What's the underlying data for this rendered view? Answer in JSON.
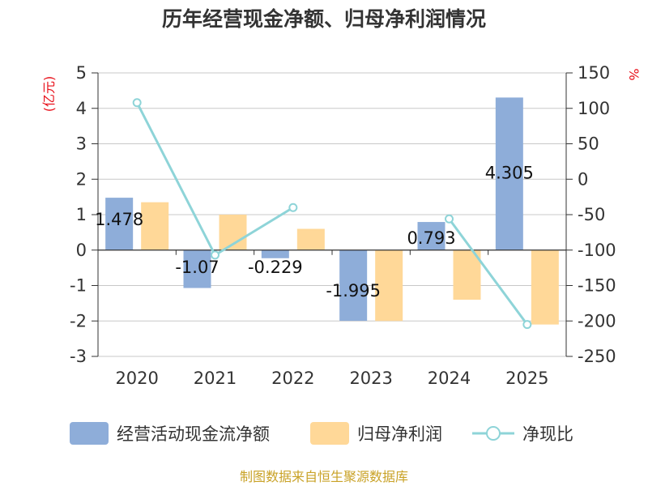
{
  "chart_data": {
    "type": "bar",
    "title": "历年经营现金净额、归母净利润情况",
    "categories": [
      "2020",
      "2021",
      "2022",
      "2023",
      "2024",
      "2025"
    ],
    "left_axis": {
      "unit_label": "(亿元)",
      "ylim": [
        -3,
        5
      ],
      "ticks": [
        5,
        4,
        3,
        2,
        1,
        0,
        -1,
        -2,
        -3
      ]
    },
    "right_axis": {
      "unit_label": "%",
      "ylim": [
        -250,
        150
      ],
      "ticks": [
        150,
        100,
        50,
        0,
        -50,
        -100,
        -150,
        -200,
        -250
      ]
    },
    "series": [
      {
        "name": "经营活动现金流净额",
        "type": "bar",
        "axis": "left",
        "color": "#8eadd9",
        "values": [
          1.478,
          -1.07,
          -0.229,
          -1.995,
          0.793,
          4.305
        ],
        "data_labels": [
          "1.478",
          "-1.07",
          "-0.229",
          "-1.995",
          "0.793",
          "4.305"
        ]
      },
      {
        "name": "归母净利润",
        "type": "bar",
        "axis": "left",
        "color": "#ffd898",
        "values": [
          1.35,
          1.0,
          0.6,
          -2.0,
          -1.4,
          -2.1
        ]
      },
      {
        "name": "净现比",
        "type": "line",
        "axis": "right",
        "color": "#8ed4d8",
        "values": [
          108,
          -107,
          -40,
          null,
          -56,
          -205
        ]
      }
    ],
    "source": "制图数据来自恒生聚源数据库"
  }
}
